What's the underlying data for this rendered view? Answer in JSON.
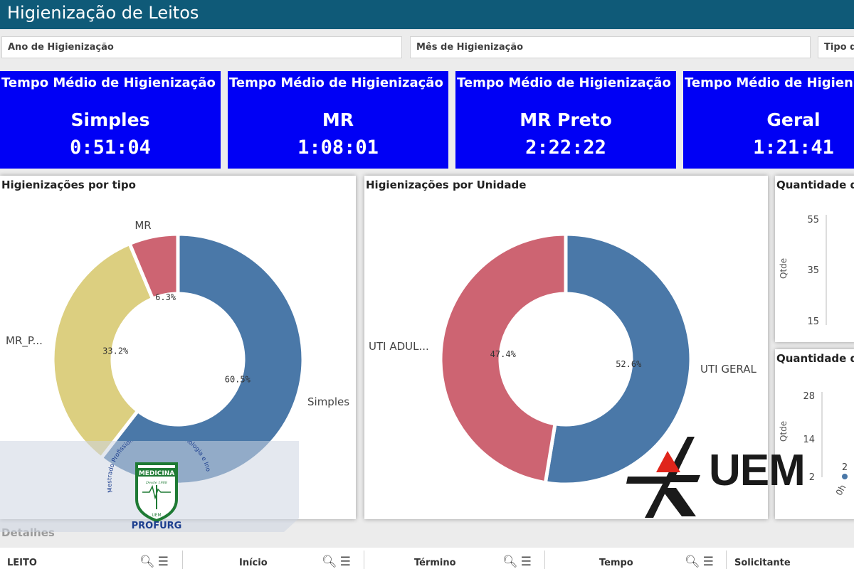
{
  "app": {
    "title": "Higienização de Leitos"
  },
  "filters": [
    {
      "label": "Ano de Higienização"
    },
    {
      "label": "Mês de Higienização"
    },
    {
      "label": "Tipo d"
    }
  ],
  "kpis": [
    {
      "title": "Tempo Médio de Higienização",
      "label": "Simples",
      "value": "0:51:04"
    },
    {
      "title": "Tempo Médio de Higienização",
      "label": "MR",
      "value": "1:08:01"
    },
    {
      "title": "Tempo Médio de Higienização",
      "label": "MR Preto",
      "value": "2:22:22"
    },
    {
      "title": "Tempo Médio de Higienizaç",
      "label": "Geral",
      "value": "1:21:41"
    }
  ],
  "colors": {
    "blue": "#4a78a8",
    "yellow": "#dccf80",
    "red": "#cd6472",
    "kpi_bg": "#0000f5",
    "titlebar": "#0f5a78"
  },
  "chart_data": [
    {
      "type": "pie",
      "title": "Higienizações por tipo",
      "categories": [
        "Simples",
        "MR_P...",
        "MR"
      ],
      "values": [
        60.5,
        33.2,
        6.3
      ],
      "value_labels": [
        "60.5%",
        "33.2%",
        "6.3%"
      ],
      "colors": [
        "#4a78a8",
        "#dccf80",
        "#cd6472"
      ]
    },
    {
      "type": "pie",
      "title": "Higienizações por Unidade",
      "categories": [
        "UTI GERAL",
        "UTI ADUL..."
      ],
      "values": [
        52.6,
        47.4
      ],
      "value_labels": [
        "52.6%",
        "47.4%"
      ],
      "colors": [
        "#4a78a8",
        "#cd6472"
      ]
    },
    {
      "type": "line",
      "title": "Quantidade d",
      "ylabel": "Qtde",
      "yticks": [
        "55",
        "35",
        "15"
      ]
    },
    {
      "type": "line",
      "title": "Quantidade d",
      "ylabel": "Qtde",
      "yticks": [
        "28",
        "14",
        "2"
      ],
      "xticks": [
        "0h"
      ],
      "data_labels": [
        "2"
      ]
    }
  ],
  "details": {
    "title": "Detalhes",
    "columns": [
      "LEITO",
      "Início",
      "Término",
      "Tempo",
      "Solicitante"
    ],
    "icons": [
      "search-icon",
      "menu-icon"
    ]
  },
  "logos": {
    "profurg_arc": "Mestrado Profissional em Gestão, Tecnologia e Inovação em Urgência e Emergência",
    "profurg_banner": "MEDICINA",
    "profurg_year": "Desde 1988",
    "profurg_small": "UEM",
    "profurg_name": "PROFURG",
    "uem": "UEM"
  }
}
